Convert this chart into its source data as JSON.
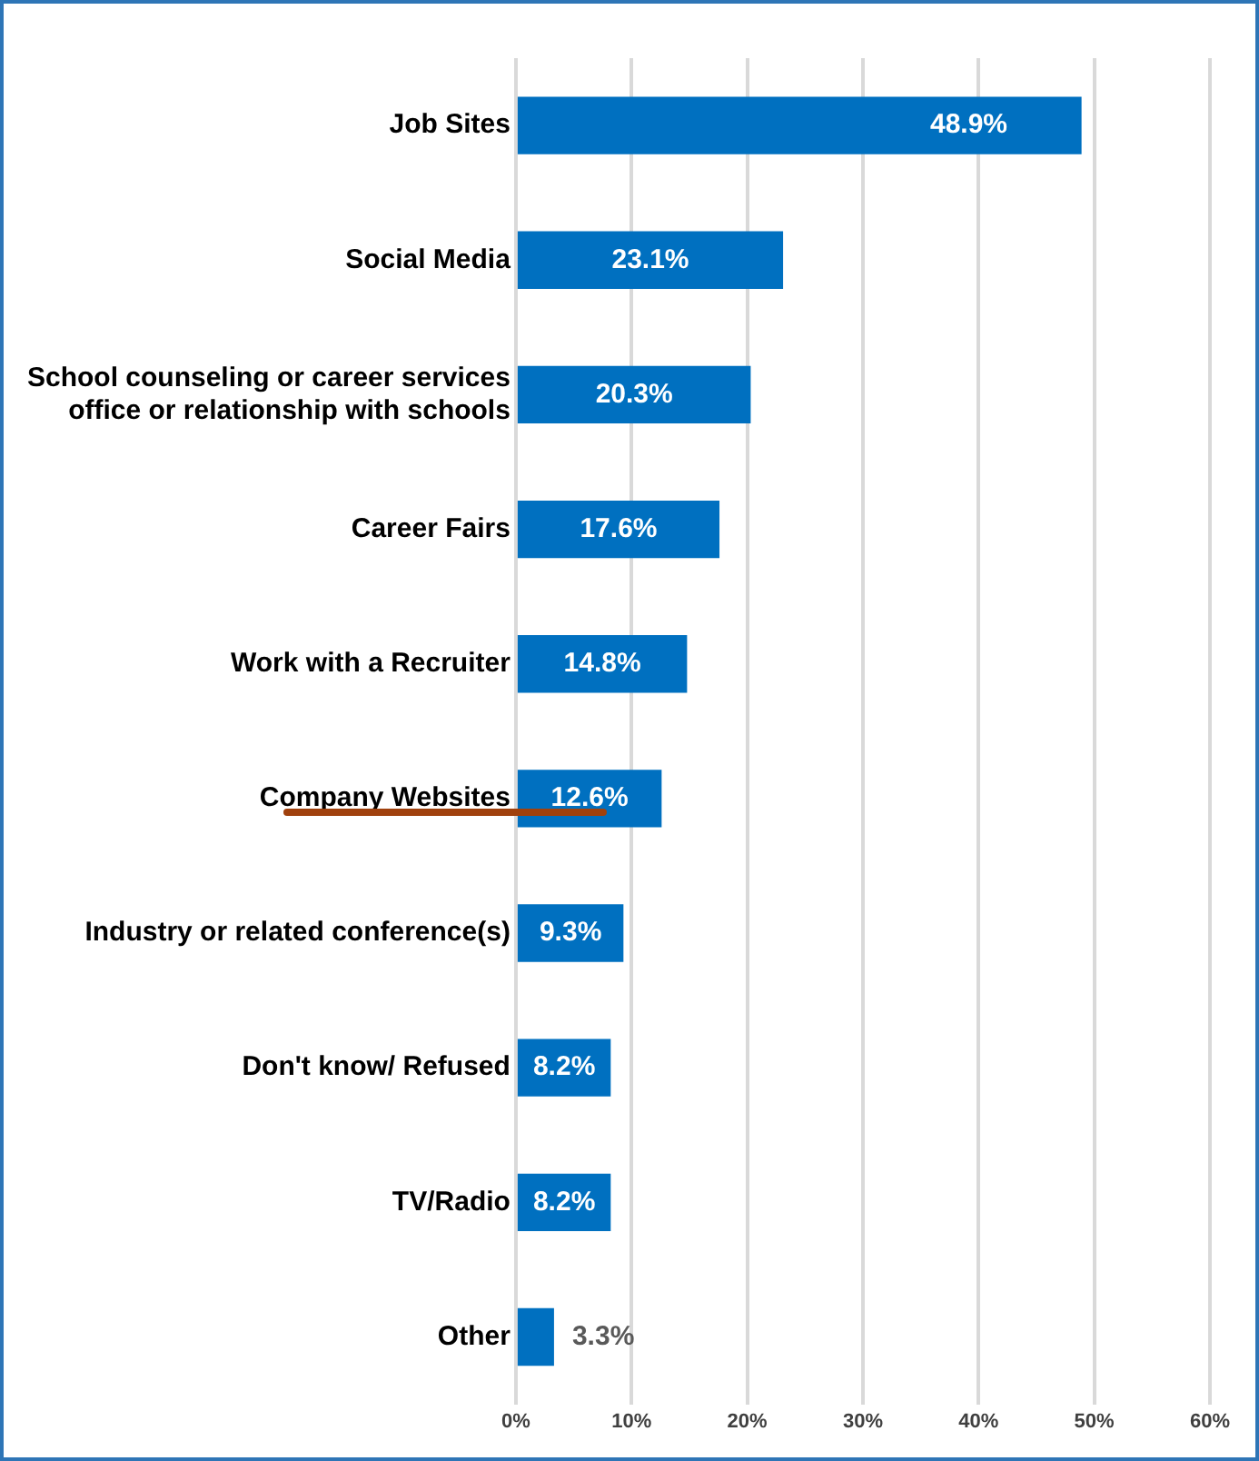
{
  "chart_data": {
    "type": "bar",
    "orientation": "horizontal",
    "categories": [
      "Job Sites",
      "Social Media",
      "School counseling or career services office or relationship with schools",
      "Career Fairs",
      "Work with a Recruiter",
      "Company Websites",
      "Industry or related conference(s)",
      "Don't know/ Refused",
      "TV/Radio",
      "Other"
    ],
    "values": [
      48.9,
      23.1,
      20.3,
      17.6,
      14.8,
      12.6,
      9.3,
      8.2,
      8.2,
      3.3
    ],
    "value_labels": [
      "48.9%",
      "23.1%",
      "20.3%",
      "17.6%",
      "14.8%",
      "12.6%",
      "9.3%",
      "8.2%",
      "8.2%",
      "3.3%"
    ],
    "color": "#0070c0",
    "xlim": [
      0,
      60
    ],
    "xticks": [
      {
        "value": 0,
        "label": "0%"
      },
      {
        "value": 10,
        "label": "10%"
      },
      {
        "value": 20,
        "label": "20%"
      },
      {
        "value": 30,
        "label": "30%"
      },
      {
        "value": 40,
        "label": "40%"
      },
      {
        "value": 50,
        "label": "50%"
      },
      {
        "value": 60,
        "label": "60%"
      }
    ],
    "grid": "x",
    "legend": false
  }
}
